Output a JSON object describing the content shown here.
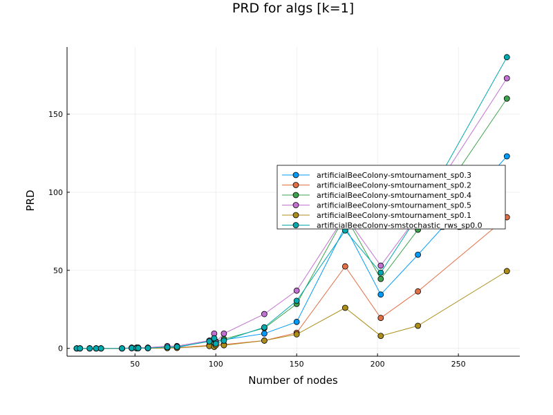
{
  "chart_data": {
    "type": "line",
    "title": "PRD for algs [k=1]",
    "xlabel": "Number of nodes",
    "ylabel": "PRD",
    "xlim": [
      8,
      288
    ],
    "ylim": [
      -5,
      193
    ],
    "xticks": [
      50,
      100,
      150,
      200,
      250
    ],
    "yticks": [
      0,
      50,
      100,
      150
    ],
    "grid": true,
    "legend_position": "right",
    "x": [
      14,
      16,
      22,
      26,
      29,
      42,
      48,
      51,
      52,
      58,
      70,
      76,
      96,
      99,
      100,
      105,
      130,
      150,
      180,
      202,
      225,
      280
    ],
    "series": [
      {
        "name": "artificialBeeColony-smtournament_sp0.3",
        "color": "#009AF9",
        "values": [
          0,
          0,
          0,
          0,
          0,
          0,
          0.2,
          0.2,
          0.2,
          0.2,
          0.5,
          0.6,
          4.8,
          1.8,
          4.5,
          5.5,
          9.5,
          17,
          78,
          34.5,
          60,
          123
        ]
      },
      {
        "name": "artificialBeeColony-smtournament_sp0.2",
        "color": "#E26F46",
        "values": [
          0,
          0,
          0,
          0,
          0,
          0,
          0.2,
          0.2,
          0.2,
          0.2,
          0.3,
          0.4,
          2,
          1.5,
          3,
          2.5,
          5,
          10,
          52.5,
          19.5,
          36.5,
          84
        ]
      },
      {
        "name": "artificialBeeColony-smtournament_sp0.4",
        "color": "#3DA44D",
        "values": [
          0,
          0,
          0,
          0,
          0,
          0,
          0.3,
          0.3,
          0.3,
          0.3,
          0.8,
          1,
          4.5,
          3,
          4.5,
          6,
          13,
          28.5,
          85,
          44.5,
          76,
          160
        ]
      },
      {
        "name": "artificialBeeColony-smtournament_sp0.5",
        "color": "#C271D2",
        "values": [
          0,
          0,
          0,
          0,
          0,
          0,
          0.5,
          0.5,
          0.5,
          0.5,
          1.5,
          1.5,
          5,
          9.5,
          4,
          9.5,
          22,
          37,
          85,
          53,
          85,
          173
        ]
      },
      {
        "name": "artificialBeeColony-smtournament_sp0.1",
        "color": "#AC8D18",
        "values": [
          0,
          0,
          0,
          0,
          0,
          0,
          0.1,
          0.1,
          0.1,
          0.1,
          0.2,
          0.3,
          1.5,
          1,
          2,
          2,
          5,
          9,
          26,
          8,
          14.5,
          49.5
        ]
      },
      {
        "name": "artificialBeeColony-smstochastic_rws_sp0.0",
        "color": "#00A9AD",
        "values": [
          0,
          0,
          0,
          0,
          0,
          0,
          0.2,
          0.2,
          0.2,
          0.2,
          0.8,
          1,
          4.5,
          6.5,
          3,
          5,
          13.5,
          30.5,
          75.5,
          48.5,
          85,
          186.5
        ]
      }
    ]
  }
}
